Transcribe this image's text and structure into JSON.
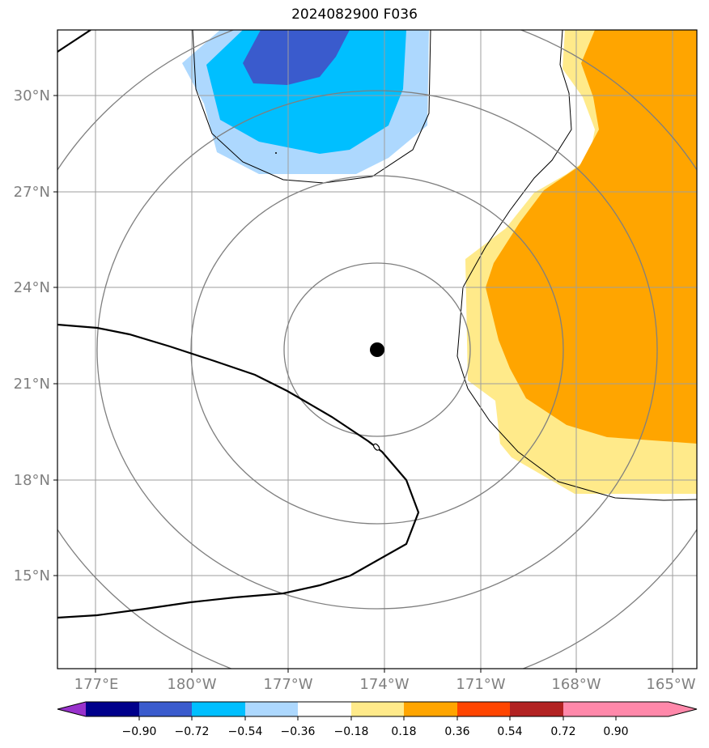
{
  "title": "2024082900 F036",
  "axes": {
    "lon_labels": [
      "177°E",
      "180°W",
      "177°W",
      "174°W",
      "171°W",
      "168°W",
      "165°W"
    ],
    "lat_labels": [
      "30°N",
      "27°N",
      "24°N",
      "21°N",
      "18°N",
      "15°N"
    ]
  },
  "center_marker": {
    "lon": -174.2,
    "lat": 22.0
  },
  "contour_label": "0",
  "colorbar": {
    "ticks": [
      "−0.90",
      "−0.72",
      "−0.54",
      "−0.36",
      "−0.18",
      "0.18",
      "0.36",
      "0.54",
      "0.72",
      "0.90"
    ],
    "colors": [
      "#9932cc",
      "#00008b",
      "#3a5bcd",
      "#00bfff",
      "#add8fe",
      "#ffffff",
      "#ffea8a",
      "#ffa500",
      "#ff4500",
      "#b22222",
      "#ff88aa"
    ]
  },
  "colors": {
    "grid": "#9e9e9e",
    "ring": "#7f7f7f",
    "dark_blue_fill": "#3a5bcd",
    "blue_fill": "#00bfff",
    "light_blue_fill": "#add8fe",
    "yellow_fill": "#ffea8a",
    "orange_fill": "#ffa500"
  }
}
